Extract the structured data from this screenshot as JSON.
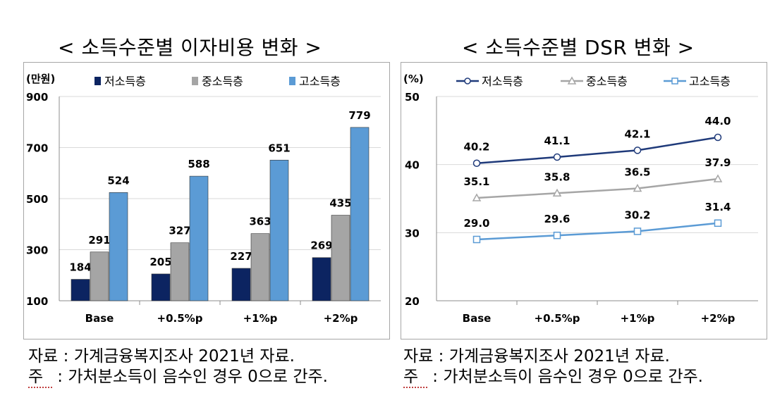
{
  "left_title": "< 소득수준별 이자비용 변화 >",
  "right_title": "< 소득수준별 DSR 변화 >",
  "notes": {
    "source": "자료 : 가계금융복지조사 2021년 자료.",
    "note_prefix": "주",
    "note_body": " : 가처분소득이 음수인 경우 0으로 간주."
  },
  "colors": {
    "low": "#0c2461",
    "mid": "#a5a5a5",
    "high": "#5b9bd5",
    "line_low": "#1f3a7a",
    "line_mid": "#a6a6a6",
    "line_high": "#5b9bd5"
  },
  "chart_data": [
    {
      "type": "bar",
      "unit_label": "(만원)",
      "categories": [
        "Base",
        "+0.5%p",
        "+1%p",
        "+2%p"
      ],
      "series": [
        {
          "name": "저소득층",
          "values": [
            184,
            205,
            227,
            269
          ]
        },
        {
          "name": "중소득층",
          "values": [
            291,
            327,
            363,
            435
          ]
        },
        {
          "name": "고소득층",
          "values": [
            524,
            588,
            651,
            779
          ]
        }
      ],
      "ylim": [
        100,
        900
      ],
      "yticks": [
        100,
        300,
        500,
        700,
        900
      ],
      "grid": true,
      "legend": "top"
    },
    {
      "type": "line",
      "unit_label": "(%)",
      "categories": [
        "Base",
        "+0.5%p",
        "+1%p",
        "+2%p"
      ],
      "series": [
        {
          "name": "저소득층",
          "values": [
            40.2,
            41.1,
            42.1,
            44.0
          ],
          "labels": [
            "40.2",
            "41.1",
            "42.1",
            "44.0"
          ]
        },
        {
          "name": "중소득층",
          "values": [
            35.1,
            35.8,
            36.5,
            37.9
          ],
          "labels": [
            "35.1",
            "35.8",
            "36.5",
            "37.9"
          ]
        },
        {
          "name": "고소득층",
          "values": [
            29.0,
            29.6,
            30.2,
            31.4
          ],
          "labels": [
            "29.0",
            "29.6",
            "30.2",
            "31.4"
          ]
        }
      ],
      "ylim": [
        20,
        50
      ],
      "yticks": [
        20,
        30,
        40,
        50
      ],
      "grid": true,
      "legend": "top"
    }
  ]
}
